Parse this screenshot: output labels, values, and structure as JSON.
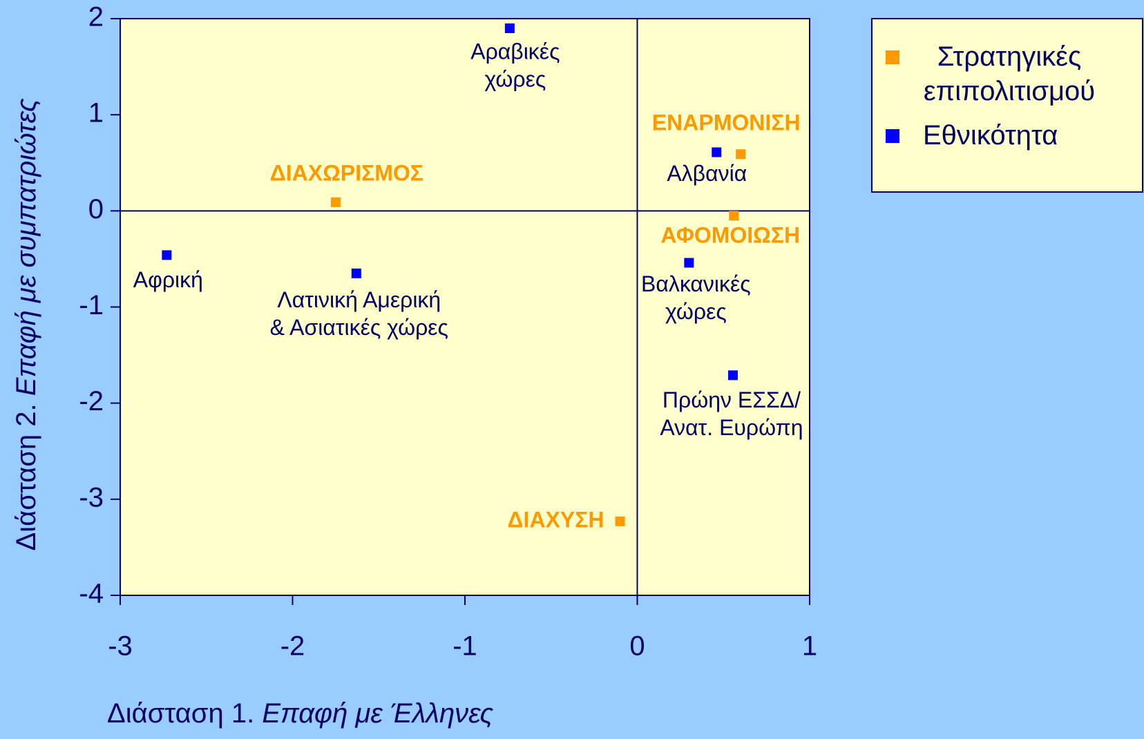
{
  "chart_data": {
    "type": "scatter",
    "x_label": {
      "plain": "Διάσταση 1.",
      "italic": "Επαφή με Έλληνες"
    },
    "y_label": {
      "plain": "Διάσταση 2.",
      "italic": "Επαφή με συμπατριώτες"
    },
    "xlim": [
      -3,
      1
    ],
    "ylim": [
      -4,
      2
    ],
    "xticks": [
      -3,
      -2,
      -1,
      0,
      1
    ],
    "yticks": [
      -4,
      -3,
      -2,
      -1,
      0,
      1,
      2
    ],
    "legend": "right",
    "series": [
      {
        "name": "Στρατηγικές επιπολιτισμού",
        "color": "#ff9900",
        "x": [
          0.6,
          -1.75,
          0.56,
          -0.1
        ],
        "y": [
          0.59,
          0.09,
          -0.05,
          -3.23
        ],
        "labels": [
          [
            "ΕΝΑΡΜΟΝΙΣΗ"
          ],
          [
            "ΔΙΑΧΩΡΙΣΜΟΣ"
          ],
          [
            "ΑΦΟΜΟΙΩΣΗ"
          ],
          [
            "ΔΙΑΧΥΣΗ"
          ]
        ]
      },
      {
        "name": "Εθνικότητα",
        "color": "#0000ff",
        "x": [
          -0.74,
          0.46,
          -2.73,
          -1.63,
          0.3,
          0.555
        ],
        "y": [
          1.9,
          0.61,
          -0.46,
          -0.65,
          -0.54,
          -1.71
        ],
        "labels": [
          [
            "Αραβικές",
            "χώρες"
          ],
          [
            "Αλβανία"
          ],
          [
            "Αφρική"
          ],
          [
            "Λατινική Αμερική",
            "& Ασιατικές χώρες"
          ],
          [
            "Βαλκανικές",
            "χώρες"
          ],
          [
            "Πρώην ΕΣΣΔ/",
            "Ανατ. Ευρώπη"
          ]
        ]
      }
    ]
  }
}
